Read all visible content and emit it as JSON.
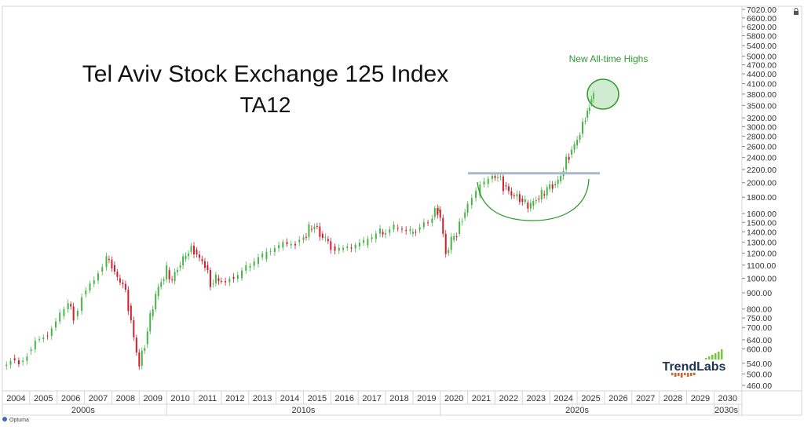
{
  "chart_data": {
    "type": "candlestick",
    "title": "Tel Aviv Stock Exchange 125 Index",
    "subtitle": "TA12",
    "y_scale": "log",
    "ylim": [
      440,
      7020
    ],
    "y_ticks": [
      "7020.00",
      "6600.00",
      "6200.00",
      "5800.00",
      "5400.00",
      "5000.00",
      "4700.00",
      "4400.00",
      "4100.00",
      "3800.00",
      "3500.00",
      "3200.00",
      "3000.00",
      "2800.00",
      "2600.00",
      "2400.00",
      "2200.00",
      "2000.00",
      "1800.00",
      "1600.00",
      "1500.00",
      "1400.00",
      "1300.00",
      "1200.00",
      "1100.00",
      "1000.00",
      "900.00",
      "800.00",
      "750.00",
      "700.00",
      "640.00",
      "600.00",
      "540.00",
      "500.00",
      "460.00"
    ],
    "x_years": [
      "2004",
      "2005",
      "2006",
      "2007",
      "2008",
      "2009",
      "2010",
      "2011",
      "2012",
      "2013",
      "2014",
      "2015",
      "2016",
      "2017",
      "2018",
      "2019",
      "2020",
      "2021",
      "2022",
      "2023",
      "2024",
      "2025",
      "2026",
      "2027",
      "2028",
      "2029",
      "2030"
    ],
    "decades": [
      {
        "label": "2000s",
        "from": 2003.9,
        "to": 2010
      },
      {
        "label": "2010s",
        "from": 2010,
        "to": 2020
      },
      {
        "label": "2020s",
        "from": 2020,
        "to": 2030
      },
      {
        "label": "2030s",
        "from": 2030,
        "to": 2030.9
      }
    ],
    "series": [
      {
        "values": [
          [
            2004.0,
            530
          ],
          [
            2004.3,
            560
          ],
          [
            2004.6,
            545
          ],
          [
            2004.9,
            590
          ],
          [
            2005.2,
            640
          ],
          [
            2005.5,
            660
          ],
          [
            2005.8,
            700
          ],
          [
            2006.1,
            760
          ],
          [
            2006.4,
            830
          ],
          [
            2006.6,
            760
          ],
          [
            2006.9,
            890
          ],
          [
            2007.2,
            960
          ],
          [
            2007.5,
            1050
          ],
          [
            2007.8,
            1150
          ],
          [
            2008.0,
            1100
          ],
          [
            2008.2,
            1000
          ],
          [
            2008.4,
            960
          ],
          [
            2008.6,
            820
          ],
          [
            2008.8,
            650
          ],
          [
            2009.0,
            530
          ],
          [
            2009.2,
            620
          ],
          [
            2009.4,
            760
          ],
          [
            2009.6,
            880
          ],
          [
            2009.8,
            980
          ],
          [
            2010.0,
            1060
          ],
          [
            2010.2,
            980
          ],
          [
            2010.4,
            1080
          ],
          [
            2010.6,
            1150
          ],
          [
            2010.8,
            1210
          ],
          [
            2011.0,
            1230
          ],
          [
            2011.2,
            1150
          ],
          [
            2011.4,
            1100
          ],
          [
            2011.6,
            960
          ],
          [
            2011.8,
            1000
          ],
          [
            2012.0,
            980
          ],
          [
            2012.3,
            1010
          ],
          [
            2012.6,
            1000
          ],
          [
            2012.9,
            1080
          ],
          [
            2013.2,
            1110
          ],
          [
            2013.5,
            1150
          ],
          [
            2013.8,
            1210
          ],
          [
            2014.1,
            1250
          ],
          [
            2014.4,
            1270
          ],
          [
            2014.7,
            1300
          ],
          [
            2015.0,
            1350
          ],
          [
            2015.2,
            1430
          ],
          [
            2015.4,
            1460
          ],
          [
            2015.6,
            1380
          ],
          [
            2015.8,
            1330
          ],
          [
            2016.0,
            1260
          ],
          [
            2016.3,
            1230
          ],
          [
            2016.6,
            1250
          ],
          [
            2016.9,
            1260
          ],
          [
            2017.2,
            1270
          ],
          [
            2017.5,
            1330
          ],
          [
            2017.8,
            1400
          ],
          [
            2018.0,
            1390
          ],
          [
            2018.3,
            1440
          ],
          [
            2018.6,
            1420
          ],
          [
            2018.9,
            1380
          ],
          [
            2019.1,
            1420
          ],
          [
            2019.4,
            1500
          ],
          [
            2019.7,
            1560
          ],
          [
            2019.9,
            1640
          ],
          [
            2020.0,
            1550
          ],
          [
            2020.2,
            1200
          ],
          [
            2020.4,
            1320
          ],
          [
            2020.6,
            1380
          ],
          [
            2020.8,
            1550
          ],
          [
            2021.0,
            1700
          ],
          [
            2021.3,
            1820
          ],
          [
            2021.6,
            1980
          ],
          [
            2021.9,
            2100
          ],
          [
            2022.1,
            2080
          ],
          [
            2022.3,
            1960
          ],
          [
            2022.5,
            1880
          ],
          [
            2022.7,
            1810
          ],
          [
            2022.9,
            1780
          ],
          [
            2023.1,
            1730
          ],
          [
            2023.3,
            1690
          ],
          [
            2023.5,
            1780
          ],
          [
            2023.7,
            1840
          ],
          [
            2023.9,
            1910
          ],
          [
            2024.1,
            1960
          ],
          [
            2024.3,
            2020
          ],
          [
            2024.5,
            2200
          ],
          [
            2024.7,
            2450
          ],
          [
            2024.9,
            2620
          ],
          [
            2025.1,
            2850
          ],
          [
            2025.3,
            3200
          ],
          [
            2025.45,
            3550
          ],
          [
            2025.6,
            3900
          ]
        ]
      }
    ],
    "annotation": {
      "text": "New All-time Highs",
      "color": "#2e9a2e"
    },
    "resistance_level": 2140,
    "colors": {
      "up": "#47b447",
      "down": "#cf1f2e",
      "annotation": "#2e9a2e",
      "resistance": "#a9b8c8"
    }
  },
  "footer": {
    "brand": "Optuma"
  },
  "logo": {
    "text": "TrendLabs"
  },
  "toolbar": {
    "lock_icon": "lock-icon"
  }
}
